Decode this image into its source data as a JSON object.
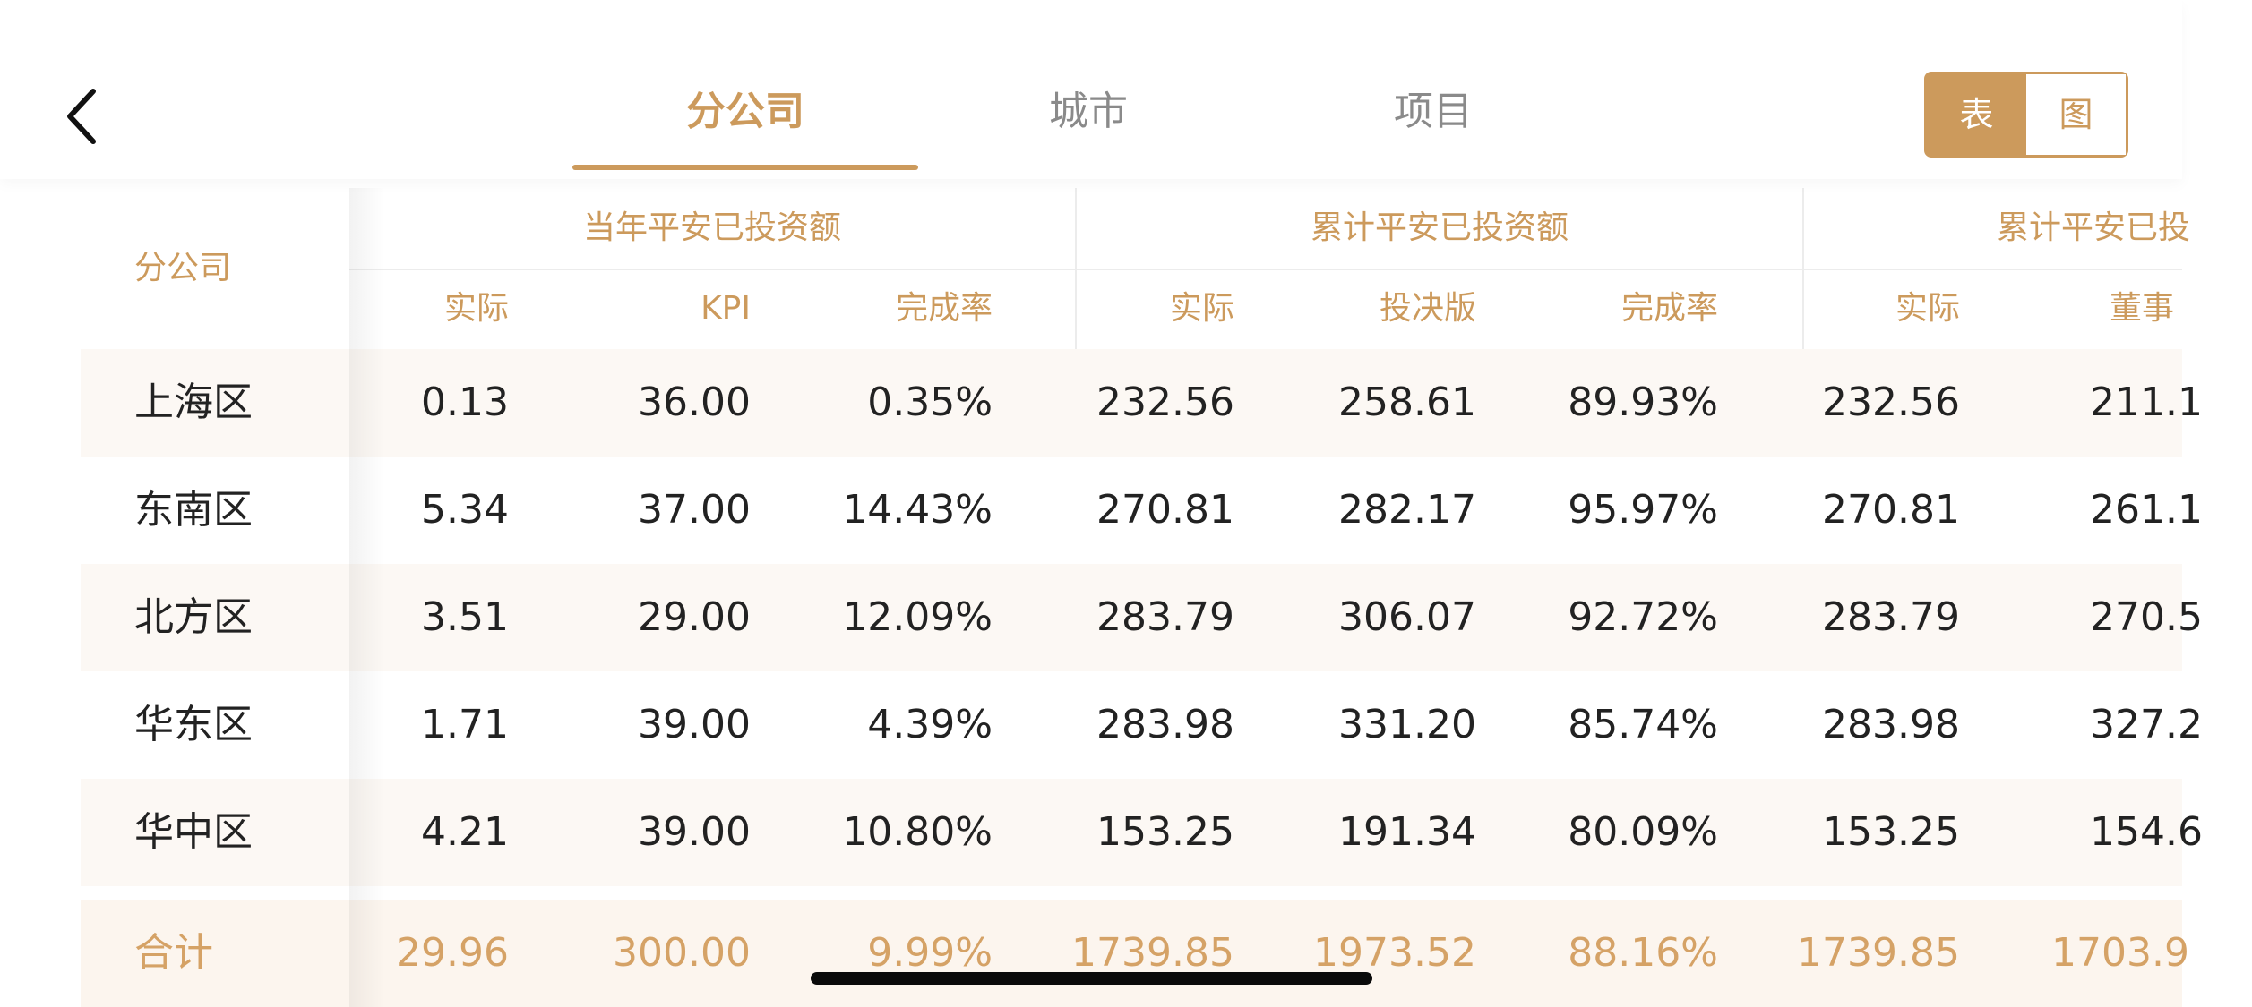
{
  "nav": {
    "tabs": [
      {
        "label": "分公司",
        "active": true
      },
      {
        "label": "城市",
        "active": false
      },
      {
        "label": "项目",
        "active": false
      }
    ],
    "view_toggle": {
      "table_label": "表",
      "chart_label": "图",
      "selected": "表"
    }
  },
  "table": {
    "name_header": "分公司",
    "groups": [
      {
        "label": "当年平安已投资额",
        "subs": [
          "实际",
          "KPI",
          "完成率"
        ]
      },
      {
        "label": "累计平安已投资额",
        "subs": [
          "实际",
          "投决版",
          "完成率"
        ]
      },
      {
        "label": "累计平安已投",
        "subs": [
          "实际",
          "董事"
        ]
      }
    ],
    "rows": [
      {
        "name": "上海区",
        "values": [
          "0.13",
          "36.00",
          "0.35%",
          "232.56",
          "258.61",
          "89.93%",
          "232.56",
          "211.1"
        ]
      },
      {
        "name": "东南区",
        "values": [
          "5.34",
          "37.00",
          "14.43%",
          "270.81",
          "282.17",
          "95.97%",
          "270.81",
          "261.1"
        ]
      },
      {
        "name": "北方区",
        "values": [
          "3.51",
          "29.00",
          "12.09%",
          "283.79",
          "306.07",
          "92.72%",
          "283.79",
          "270.5"
        ]
      },
      {
        "name": "华东区",
        "values": [
          "1.71",
          "39.00",
          "4.39%",
          "283.98",
          "331.20",
          "85.74%",
          "283.98",
          "327.2"
        ]
      },
      {
        "name": "华中区",
        "values": [
          "4.21",
          "39.00",
          "10.80%",
          "153.25",
          "191.34",
          "80.09%",
          "153.25",
          "154.6"
        ]
      }
    ],
    "total": {
      "name": "合计",
      "values": [
        "29.96",
        "300.00",
        "9.99%",
        "1739.85",
        "1973.52",
        "88.16%",
        "1739.85",
        "1703.9"
      ]
    }
  },
  "colors": {
    "accent": "#cc9a5c",
    "total_text": "#d5a266",
    "row_alt_bg": "#fcf8f4"
  }
}
